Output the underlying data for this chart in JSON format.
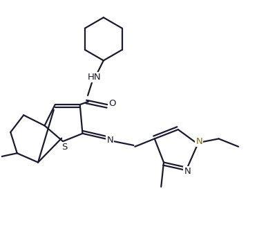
{
  "bg_color": "#ffffff",
  "line_color": "#1a1a2e",
  "bond_lw": 1.6,
  "figsize": [
    4.02,
    3.25
  ],
  "dpi": 100,
  "xlim": [
    0,
    10.5
  ],
  "ylim": [
    0,
    8.5
  ],
  "N_color": "#1a1a2e",
  "N_ethyl_color": "#8B6914",
  "S_color": "#1a1a2e"
}
